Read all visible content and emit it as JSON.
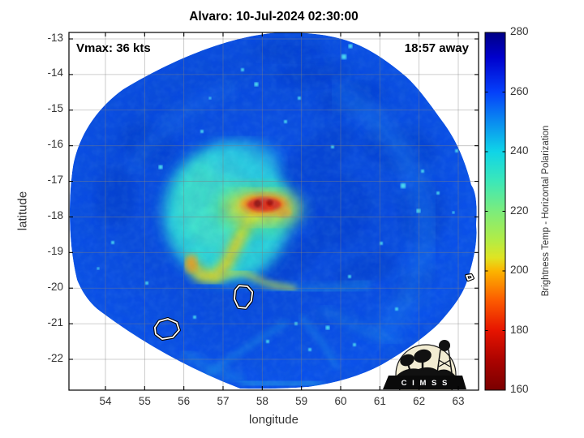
{
  "title": "Alvaro: 10-Jul-2024 02:30:00",
  "annotations": {
    "vmax_label": "Vmax: 36 kts",
    "time_label": "18:57 away"
  },
  "axes": {
    "xlabel": "longitude",
    "ylabel": "latitude",
    "x_ticks": [
      "54",
      "55",
      "56",
      "57",
      "58",
      "59",
      "60",
      "61",
      "62",
      "63"
    ],
    "y_ticks": [
      "-13",
      "-14",
      "-15",
      "-16",
      "-17",
      "-18",
      "-19",
      "-20",
      "-21",
      "-22"
    ]
  },
  "colorbar": {
    "label": "Brightness Temp - Horizontal Polarization",
    "ticks": [
      "280",
      "260",
      "240",
      "220",
      "200",
      "180",
      "160"
    ],
    "min": 160,
    "max": 280
  },
  "logo": {
    "text": "C I M S S"
  },
  "chart_data": {
    "type": "heatmap",
    "title": "Alvaro: 10-Jul-2024 02:30:00",
    "xlabel": "longitude",
    "ylabel": "latitude",
    "x_range": [
      53.1,
      63.5
    ],
    "y_range": [
      -22.9,
      -12.8
    ],
    "x_tick_values": [
      54,
      55,
      56,
      57,
      58,
      59,
      60,
      61,
      62,
      63
    ],
    "y_tick_values": [
      -13,
      -14,
      -15,
      -16,
      -17,
      -18,
      -19,
      -20,
      -21,
      -22
    ],
    "grid": true,
    "value_label": "Brightness Temp - Horizontal Polarization",
    "value_range": [
      160,
      280
    ],
    "colorbar_tick_values": [
      280,
      260,
      240,
      220,
      200,
      180,
      160
    ],
    "colormap": "jet_reversed (280 K navy -> 160 K dark red)",
    "swath": {
      "center_lon": 58.3,
      "center_lat": -17.9,
      "radius_deg": 5.2,
      "background_bt_K": 252
    },
    "storm": {
      "name": "Alvaro",
      "vmax_kts": 36,
      "core": {
        "lon": 58.05,
        "lat": -17.65,
        "min_bt_K": 165
      },
      "warm_band_head": {
        "lon": 57.1,
        "lat": -17.9,
        "bt_K": 235
      },
      "band_arc": [
        [
          57.85,
          -17.6
        ],
        [
          57.56,
          -18.29
        ],
        [
          57.27,
          -18.92
        ],
        [
          57.06,
          -19.38
        ],
        [
          56.81,
          -19.68
        ],
        [
          56.44,
          -19.65
        ],
        [
          56.19,
          -19.31
        ]
      ],
      "band_tail": [
        [
          56.94,
          -19.65
        ],
        [
          57.52,
          -19.56
        ],
        [
          58.14,
          -19.88
        ],
        [
          58.8,
          -20.02
        ]
      ]
    },
    "contours": [
      [
        [
          55.26,
          -21.11
        ],
        [
          55.37,
          -20.93
        ],
        [
          55.59,
          -20.86
        ],
        [
          55.82,
          -20.97
        ],
        [
          55.88,
          -21.18
        ],
        [
          55.72,
          -21.38
        ],
        [
          55.45,
          -21.43
        ],
        [
          55.28,
          -21.29
        ]
      ],
      [
        [
          57.41,
          -19.93
        ],
        [
          57.62,
          -19.95
        ],
        [
          57.75,
          -20.11
        ],
        [
          57.72,
          -20.36
        ],
        [
          57.58,
          -20.56
        ],
        [
          57.39,
          -20.54
        ],
        [
          57.29,
          -20.31
        ],
        [
          57.31,
          -20.06
        ]
      ],
      [
        [
          63.21,
          -19.65
        ],
        [
          63.33,
          -19.63
        ],
        [
          63.37,
          -19.72
        ],
        [
          63.25,
          -19.77
        ]
      ]
    ]
  }
}
